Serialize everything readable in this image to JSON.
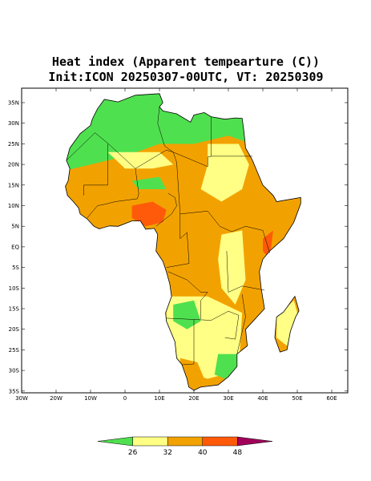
{
  "title": "Heat index (Apparent tempearture (C))",
  "subtitle": "Init:ICON 20250307-00UTC, VT: 20250309",
  "lat_labels": [
    "35N",
    "30N",
    "25N",
    "20N",
    "15N",
    "10N",
    "5N",
    "EQ",
    "5S",
    "10S",
    "15S",
    "20S",
    "25S",
    "30S",
    "35S"
  ],
  "lon_labels": [
    "30W",
    "20W",
    "10W",
    "0",
    "10E",
    "20E",
    "30E",
    "40E",
    "50E",
    "60E"
  ],
  "colorbar": {
    "levels": [
      26,
      32,
      40,
      48
    ],
    "colors": [
      "#4fe04f",
      "#ffff85",
      "#f2a200",
      "#ff5a0a",
      "#a0005a"
    ]
  }
}
